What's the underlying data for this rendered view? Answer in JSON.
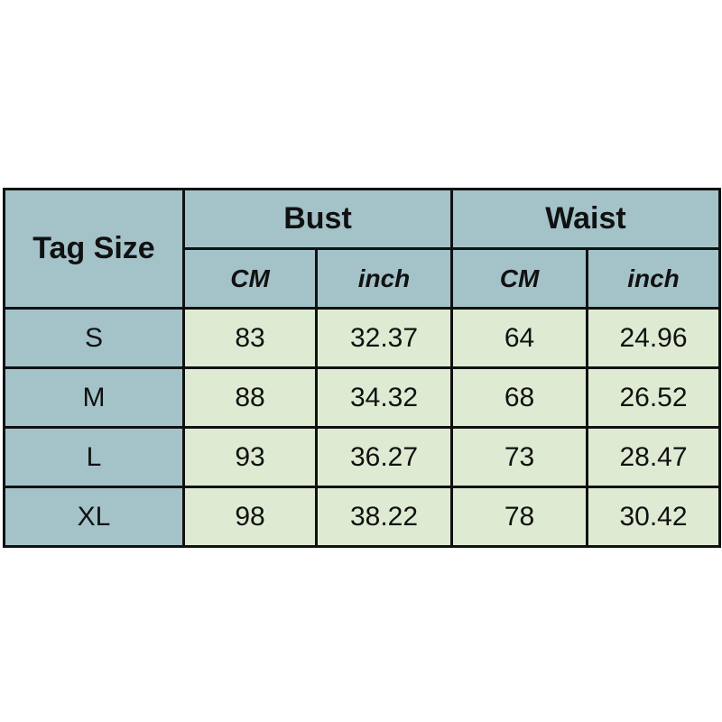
{
  "table": {
    "corner_header": "Tag Size",
    "groups": [
      "Bust",
      "Waist"
    ],
    "units": [
      "CM",
      "inch",
      "CM",
      "inch"
    ],
    "rows": [
      {
        "size": "S",
        "values": [
          "83",
          "32.37",
          "64",
          "24.96"
        ]
      },
      {
        "size": "M",
        "values": [
          "88",
          "34.32",
          "68",
          "26.52"
        ]
      },
      {
        "size": "L",
        "values": [
          "93",
          "36.27",
          "73",
          "28.47"
        ]
      },
      {
        "size": "XL",
        "values": [
          "98",
          "38.22",
          "78",
          "30.42"
        ]
      }
    ]
  },
  "colors": {
    "header": "#a3c3c9",
    "data": "#deebd2",
    "border": "#111111"
  }
}
